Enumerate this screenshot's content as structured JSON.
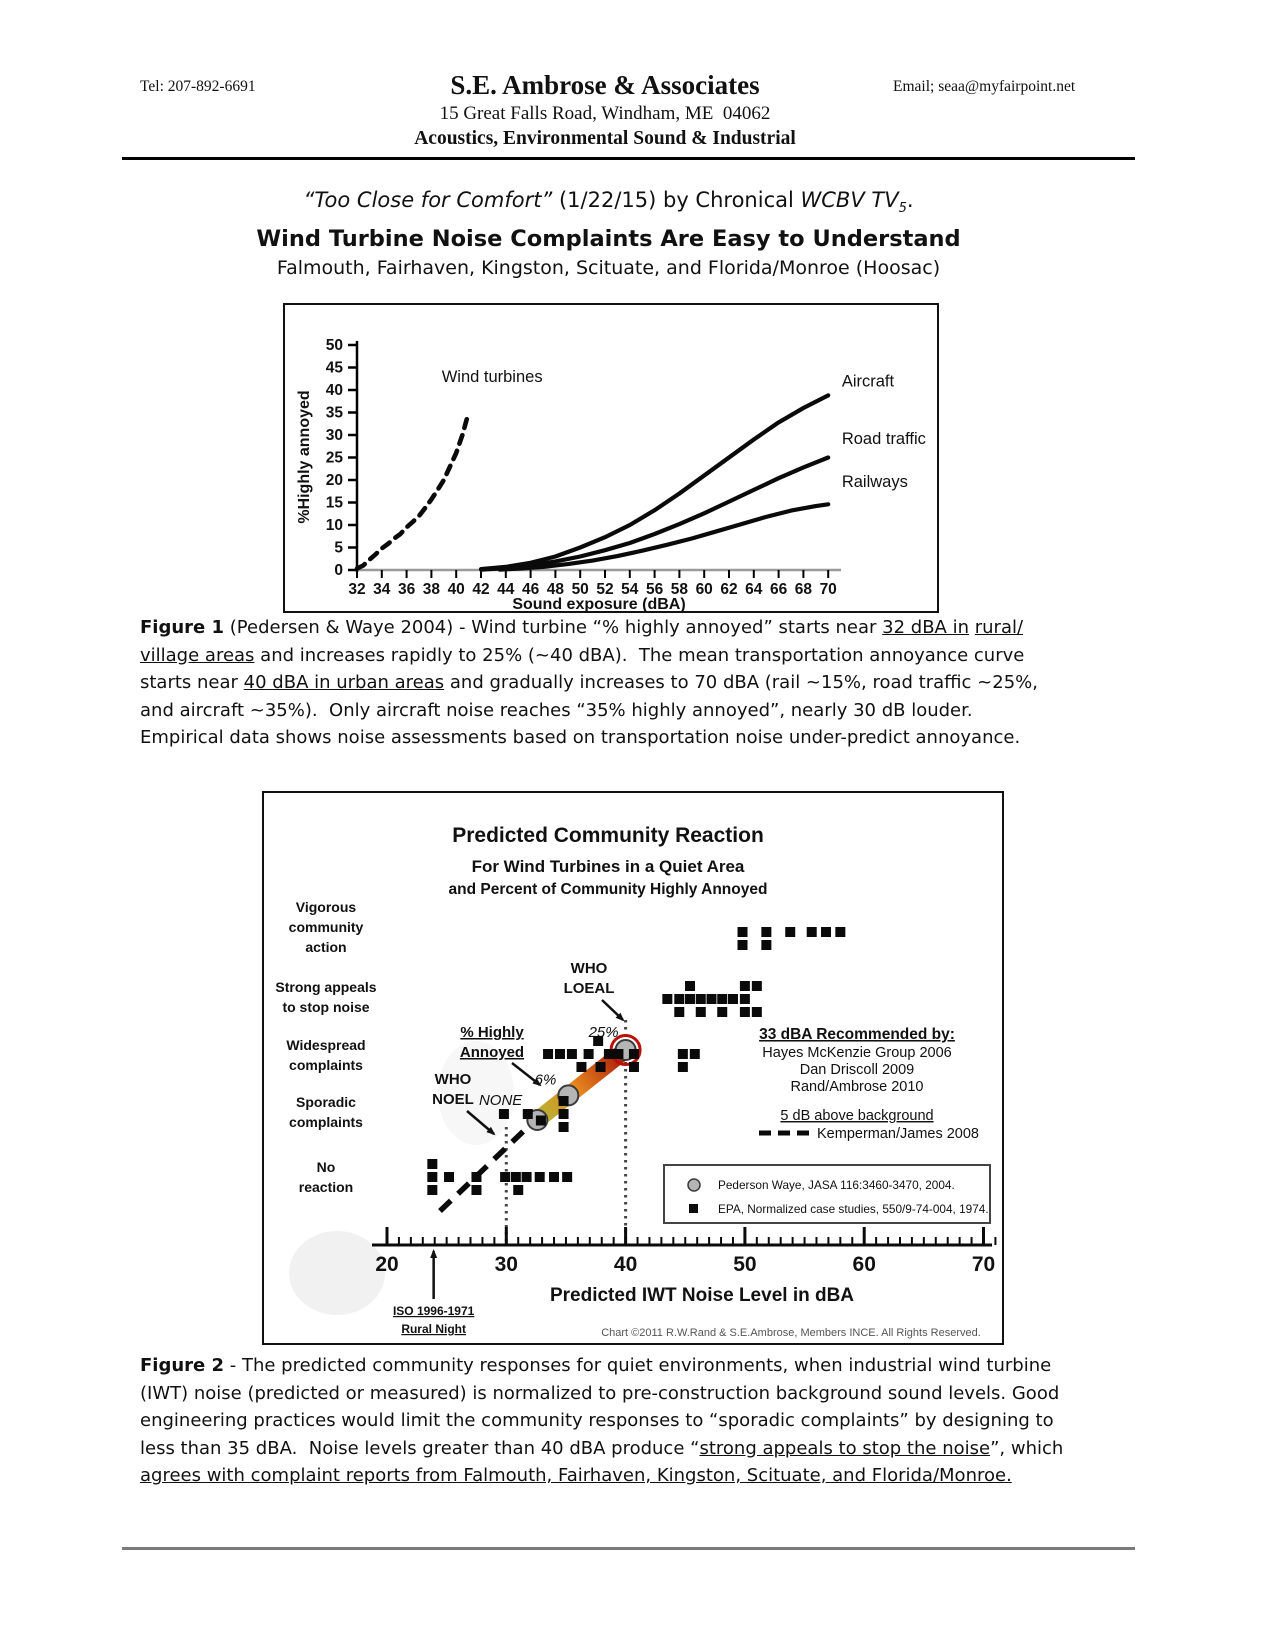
{
  "header": {
    "tel": "Tel: 207-892-6691",
    "company": "S.E. Ambrose & Associates",
    "address": "15 Great Falls Road, Windham, ME  04062",
    "tagline": "Acoustics, Environmental Sound & Industrial",
    "email": "Email; seaa@myfairpoint.net"
  },
  "titles": {
    "line1_segments": [
      {
        "t": "“Too Close for Comfort”",
        "i": true
      },
      {
        "t": " (1/22/15) by Chronical "
      },
      {
        "t": "WCBV TV",
        "i": true
      },
      {
        "t": "5",
        "i": true,
        "sub": true
      },
      {
        "t": "."
      }
    ],
    "heading": "Wind Turbine Noise Complaints Are Easy to Understand",
    "subheading": "Falmouth, Fairhaven, Kingston, Scituate, and Florida/Monroe (Hoosac)"
  },
  "chart_data": [
    {
      "id": "figure1",
      "type": "line",
      "title": "",
      "xlabel": "Sound exposure (dBA)",
      "ylabel": "%Highly annoyed",
      "xlim": [
        32,
        70
      ],
      "ylim": [
        0,
        50
      ],
      "xtick_step": 2,
      "ytick_step": 5,
      "grid": false,
      "series": [
        {
          "name": "Wind turbines",
          "style": "dashed",
          "label_xy": [
            42.9,
            41.8
          ],
          "label_anchor": "middle",
          "points": [
            [
              32,
              0.3
            ],
            [
              32.5,
              1
            ],
            [
              33,
              2.3
            ],
            [
              33.5,
              3.5
            ],
            [
              34,
              4.8
            ],
            [
              34.5,
              5.8
            ],
            [
              35,
              7
            ],
            [
              35.5,
              8
            ],
            [
              36,
              9.5
            ],
            [
              36.5,
              10.7
            ],
            [
              37,
              12
            ],
            [
              37.5,
              13.8
            ],
            [
              38,
              15.7
            ],
            [
              38.5,
              17.8
            ],
            [
              39,
              20
            ],
            [
              39.5,
              23
            ],
            [
              40,
              26
            ],
            [
              40.5,
              30
            ],
            [
              41,
              35
            ]
          ]
        },
        {
          "name": "Aircraft",
          "style": "solid",
          "label_xy": [
            71.1,
            40.8
          ],
          "label_anchor": "start",
          "points": [
            [
              42,
              0.2
            ],
            [
              44,
              0.7
            ],
            [
              46,
              1.6
            ],
            [
              48,
              3
            ],
            [
              50,
              5
            ],
            [
              52,
              7.3
            ],
            [
              54,
              10
            ],
            [
              56,
              13.3
            ],
            [
              58,
              17
            ],
            [
              60,
              21
            ],
            [
              62,
              25
            ],
            [
              64,
              29
            ],
            [
              66,
              32.8
            ],
            [
              68,
              36
            ],
            [
              70,
              38.8
            ]
          ]
        },
        {
          "name": "Road traffic",
          "style": "solid",
          "label_xy": [
            71.1,
            28
          ],
          "label_anchor": "start",
          "points": [
            [
              42,
              0.1
            ],
            [
              44,
              0.4
            ],
            [
              46,
              1
            ],
            [
              48,
              1.9
            ],
            [
              50,
              3
            ],
            [
              52,
              4.4
            ],
            [
              54,
              6
            ],
            [
              56,
              8
            ],
            [
              58,
              10.2
            ],
            [
              60,
              12.6
            ],
            [
              62,
              15.2
            ],
            [
              64,
              17.8
            ],
            [
              66,
              20.4
            ],
            [
              68,
              22.8
            ],
            [
              70,
              25
            ]
          ]
        },
        {
          "name": "Railways",
          "style": "solid",
          "label_xy": [
            71.1,
            18.5
          ],
          "label_anchor": "start",
          "points": [
            [
              43.5,
              0.1
            ],
            [
              45,
              0.3
            ],
            [
              47,
              0.7
            ],
            [
              49,
              1.3
            ],
            [
              51,
              2.1
            ],
            [
              53,
              3.1
            ],
            [
              55,
              4.3
            ],
            [
              57,
              5.6
            ],
            [
              59,
              7
            ],
            [
              61,
              8.6
            ],
            [
              63,
              10.2
            ],
            [
              65,
              11.8
            ],
            [
              67,
              13.2
            ],
            [
              69,
              14.2
            ],
            [
              70,
              14.6
            ]
          ]
        }
      ]
    },
    {
      "id": "figure2",
      "type": "scatter",
      "title": "Predicted Community Reaction",
      "subtitle1": "For Wind Turbines in a Quiet Area",
      "subtitle2": "and Percent of Community Highly Annoyed",
      "xlabel": "Predicted IWT Noise Level in dBA",
      "xlim": [
        20,
        70
      ],
      "xticks": [
        20,
        30,
        40,
        50,
        60,
        70
      ],
      "rows": [
        {
          "category": "Vigorous community action",
          "label_lines": [
            "Vigorous",
            "community",
            "action"
          ],
          "points": [
            [
              49.8,
              0
            ],
            [
              49.8,
              -1
            ],
            [
              51.8,
              0
            ],
            [
              51.8,
              -1
            ],
            [
              53.8,
              0
            ],
            [
              55.6,
              0
            ],
            [
              56.8,
              0
            ],
            [
              58,
              0
            ]
          ]
        },
        {
          "category": "Strong appeals to stop noise",
          "label_lines": [
            "Strong appeals",
            "to stop noise"
          ],
          "points": [
            [
              43.5,
              0
            ],
            [
              44.5,
              0
            ],
            [
              44.5,
              -1
            ],
            [
              45.4,
              1
            ],
            [
              45.4,
              0
            ],
            [
              46.3,
              0
            ],
            [
              46.3,
              -1
            ],
            [
              47.2,
              0
            ],
            [
              48.1,
              0
            ],
            [
              48.1,
              -1
            ],
            [
              49,
              0
            ],
            [
              50,
              1
            ],
            [
              50,
              0
            ],
            [
              50,
              -1
            ],
            [
              51,
              1
            ],
            [
              51,
              -1
            ]
          ]
        },
        {
          "category": "Widespread complaints",
          "label_lines": [
            "Widespread",
            "complaints"
          ],
          "points": [
            [
              33.5,
              0
            ],
            [
              34.5,
              0
            ],
            [
              35.5,
              0
            ],
            [
              36.3,
              -1
            ],
            [
              36.9,
              0
            ],
            [
              37.7,
              1
            ],
            [
              37.9,
              -1
            ],
            [
              38.6,
              0
            ],
            [
              39.4,
              0
            ],
            [
              40.7,
              0
            ],
            [
              40.7,
              -1
            ],
            [
              44.8,
              0
            ],
            [
              45.8,
              0
            ],
            [
              44.8,
              -1
            ]
          ]
        },
        {
          "category": "Sporadic complaints",
          "label_lines": [
            "Sporadic",
            "complaints"
          ],
          "points": [
            [
              29.8,
              0
            ],
            [
              31.8,
              0
            ],
            [
              32.9,
              -0.5
            ],
            [
              34.8,
              1
            ],
            [
              34.8,
              0
            ],
            [
              34.8,
              -1
            ]
          ]
        },
        {
          "category": "No reaction",
          "label_lines": [
            "No",
            "reaction"
          ],
          "points": [
            [
              23.8,
              1
            ],
            [
              23.8,
              0
            ],
            [
              23.8,
              -1
            ],
            [
              25.2,
              0
            ],
            [
              27.5,
              0
            ],
            [
              27.5,
              -1
            ],
            [
              29.9,
              0
            ],
            [
              30.8,
              0
            ],
            [
              31,
              -1
            ],
            [
              31.7,
              0
            ],
            [
              32.8,
              0
            ],
            [
              34,
              0
            ],
            [
              35.1,
              0
            ]
          ]
        }
      ],
      "pederson_series": {
        "label": "Pederson Waye, JASA 116:3460-3470, 2004.",
        "points_dBA": [
          32.6,
          35.2,
          40
        ],
        "annotations": [
          "NONE",
          "6%",
          "25%"
        ],
        "colors": [
          "#b3b735",
          "#e6871e",
          "#a51008"
        ]
      },
      "kemperman_line": {
        "sublabel": "5 dB above background",
        "label": "Kemperman/James 2008",
        "from_dBA": 24.4,
        "to_dBA": 32.3
      },
      "dotted_lines_dBA": [
        30,
        40
      ],
      "who_noel": [
        "WHO",
        "NOEL"
      ],
      "who_loeal": [
        "WHO",
        "LOEAL"
      ],
      "pct_highly_annoyed": [
        "% Highly",
        "Annoyed"
      ],
      "recommended": {
        "title": "33 dBA Recommended by:",
        "names": [
          "Hayes McKenzie Group 2006",
          "Dan Driscoll 2009",
          "Rand/Ambrose 2010"
        ]
      },
      "legend": [
        {
          "label": "Pederson Waye, JASA 116:3460-3470, 2004.",
          "marker": "gradient-line-circle"
        },
        {
          "label": "EPA, Normalized case studies, 550/9-74-004, 1974.",
          "marker": "black-square"
        }
      ],
      "iso_label": [
        "ISO 1996-1971",
        "Rural Night"
      ],
      "iso_dBA": 25,
      "copyright": "Chart ©2011 R.W.Rand & S.E.Ambrose, Members INCE. All Rights Reserved."
    }
  ],
  "captions": {
    "fig1_segments": [
      {
        "t": "Figure 1",
        "b": true
      },
      {
        "t": " (Pedersen & Waye 2004) - Wind turbine “% highly annoyed” starts near "
      },
      {
        "t": "32 dBA in",
        "u": true
      },
      {
        "t": " "
      },
      {
        "t": "rural/",
        "u": true
      },
      {
        "br": true
      },
      {
        "t": "village areas",
        "u": true
      },
      {
        "t": " and increases rapidly to 25% (~40 dBA).  The mean transportation annoyance curve"
      },
      {
        "br": true
      },
      {
        "t": "starts near "
      },
      {
        "t": "40 dBA in urban areas",
        "u": true
      },
      {
        "t": " and gradually increases to 70 dBA (rail ~15%, road traffic ~25%,"
      },
      {
        "br": true
      },
      {
        "t": "and aircraft ~35%).  Only aircraft noise reaches “35% highly annoyed”, nearly 30 dB louder."
      },
      {
        "br": true
      },
      {
        "t": "Empirical data shows noise assessments based on transportation noise under-predict annoyance."
      }
    ],
    "fig2_segments": [
      {
        "t": "Figure 2",
        "b": true
      },
      {
        "t": " - The predicted community responses for quiet environments, when industrial wind turbine"
      },
      {
        "br": true
      },
      {
        "t": "(IWT) noise (predicted or measured) is normalized to pre-construction background sound levels. Good"
      },
      {
        "br": true
      },
      {
        "t": "engineering practices would limit the community responses to “sporadic complaints” by designing to"
      },
      {
        "br": true
      },
      {
        "t": "less than 35 dBA.  Noise levels greater than 40 dBA produce “"
      },
      {
        "t": "strong appeals to stop the noise",
        "u": true
      },
      {
        "t": "”, which"
      },
      {
        "br": true
      },
      {
        "t": "agrees with complaint reports from Falmouth, Fairhaven, Kingston, Scituate, and Florida/Monroe.",
        "u": true
      }
    ]
  }
}
